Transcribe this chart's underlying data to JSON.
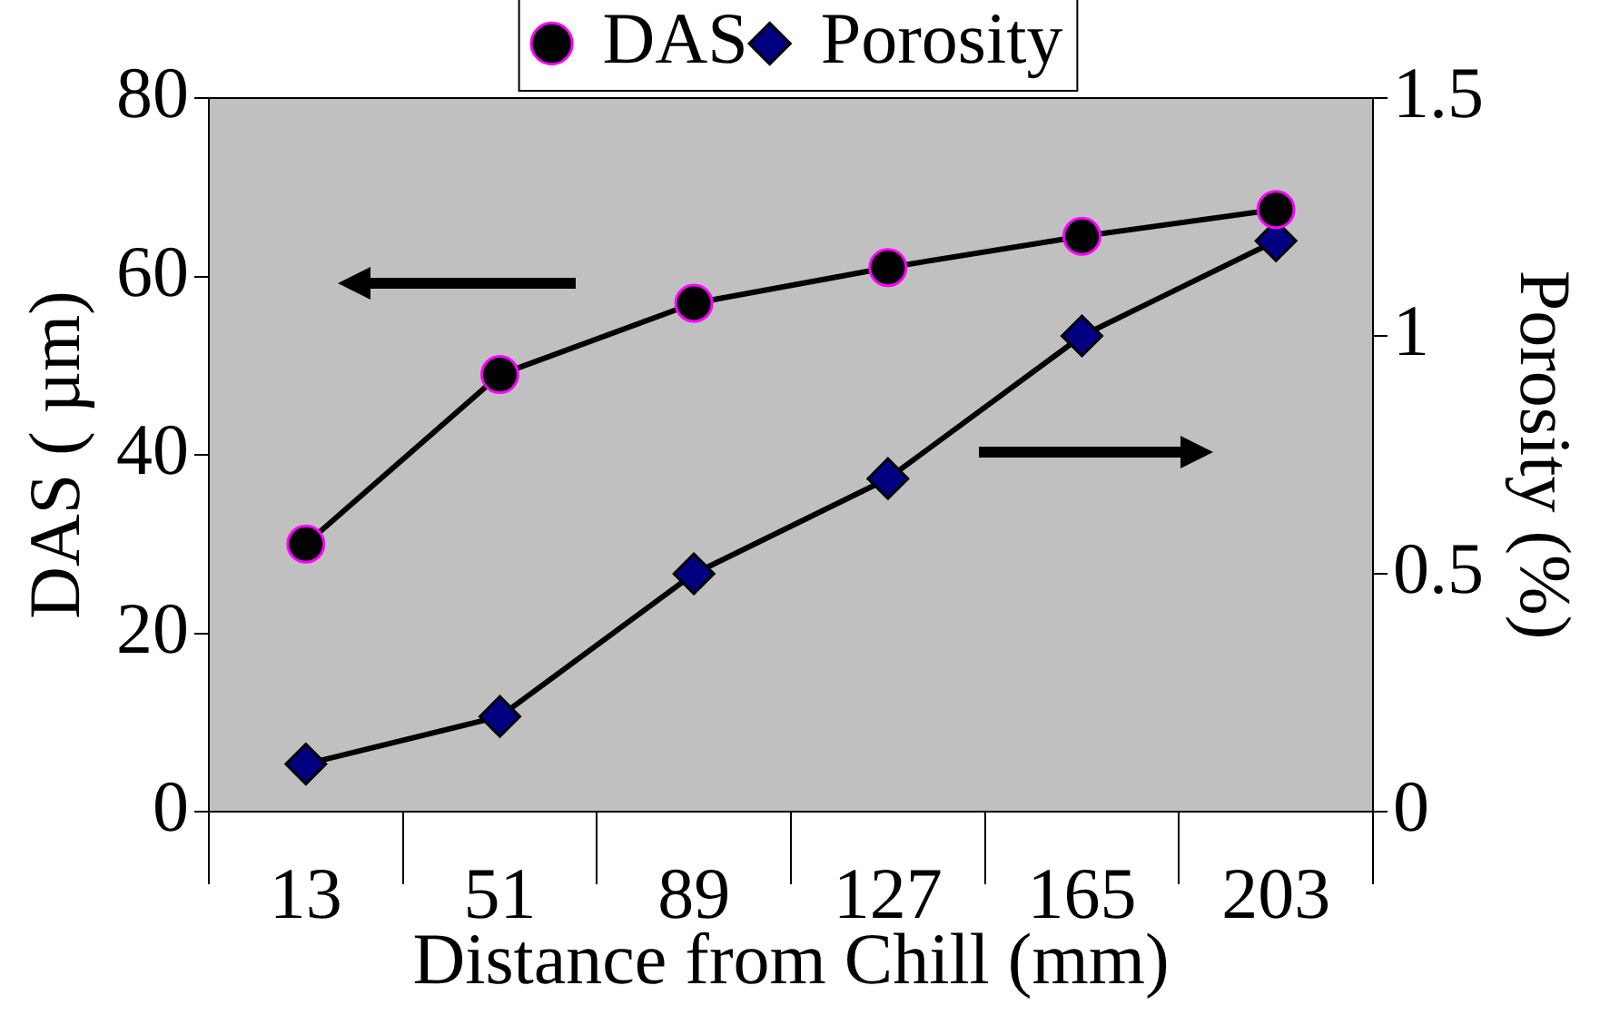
{
  "chart_data": {
    "type": "line",
    "xlabel": "Distance from Chill (mm)",
    "ylabel": "DAS ( µm)",
    "y2label": "Porosity (%)",
    "categories": [
      "13",
      "51",
      "89",
      "127",
      "165",
      "203"
    ],
    "series": [
      {
        "name": "DAS",
        "color": "#000000",
        "marker": "circle",
        "values": [
          30,
          49,
          57,
          61,
          64.5,
          67.5
        ]
      },
      {
        "name": "Porosity",
        "color": "#000080",
        "marker": "diamond",
        "axis": "y2",
        "values": [
          0.1,
          0.2,
          0.5,
          0.7,
          1.0,
          1.2
        ]
      }
    ],
    "ylim": [
      0,
      80
    ],
    "yticks": [
      0,
      20,
      40,
      60,
      80
    ],
    "y2lim": [
      0,
      1.5
    ],
    "y2ticks": [
      0,
      0.5,
      1,
      1.5
    ],
    "grid": false,
    "legend": "top",
    "line_style": "solid"
  }
}
